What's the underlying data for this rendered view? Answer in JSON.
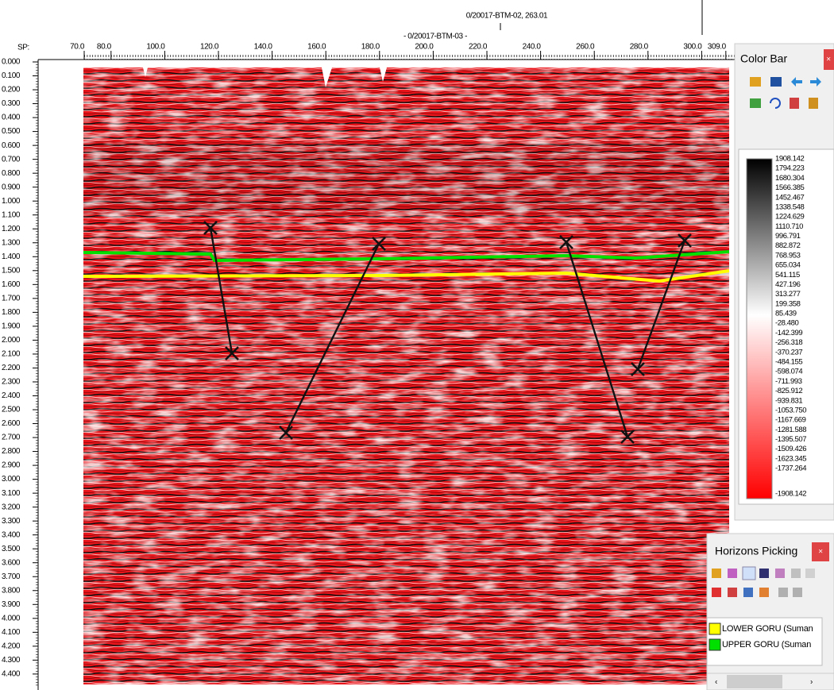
{
  "header": {
    "well_label_1": "0/20017-BTM-02, 263.01",
    "well_label_2": "- 0/20017-BTM-03 -",
    "sp_label": "SP:"
  },
  "sp_axis": {
    "ticks": [
      {
        "value": 70,
        "label": "70.0"
      },
      {
        "value": 80,
        "label": "80.0"
      },
      {
        "value": 100,
        "label": "100.0"
      },
      {
        "value": 120,
        "label": "120.0"
      },
      {
        "value": 140,
        "label": "140.0"
      },
      {
        "value": 160,
        "label": "160.0"
      },
      {
        "value": 180,
        "label": "180.0"
      },
      {
        "value": 200,
        "label": "200.0"
      },
      {
        "value": 220,
        "label": "220.0"
      },
      {
        "value": 240,
        "label": "240.0"
      },
      {
        "value": 260,
        "label": "260.0"
      },
      {
        "value": 280,
        "label": "280.0"
      },
      {
        "value": 300,
        "label": "300.0"
      },
      {
        "value": 309,
        "label": "309.0"
      }
    ]
  },
  "time_axis": {
    "ticks": [
      {
        "value": 0,
        "label": "0.000"
      },
      {
        "value": 0.1,
        "label": "0.100"
      },
      {
        "value": 0.2,
        "label": "0.200"
      },
      {
        "value": 0.3,
        "label": "0.300"
      },
      {
        "value": 0.4,
        "label": "0.400"
      },
      {
        "value": 0.5,
        "label": "0.500"
      },
      {
        "value": 0.6,
        "label": "0.600"
      },
      {
        "value": 0.7,
        "label": "0.700"
      },
      {
        "value": 0.8,
        "label": "0.800"
      },
      {
        "value": 0.9,
        "label": "0.900"
      },
      {
        "value": 1.0,
        "label": "1.000"
      },
      {
        "value": 1.1,
        "label": "1.100"
      },
      {
        "value": 1.2,
        "label": "1.200"
      },
      {
        "value": 1.3,
        "label": "1.300"
      },
      {
        "value": 1.4,
        "label": "1.400"
      },
      {
        "value": 1.5,
        "label": "1.500"
      },
      {
        "value": 1.6,
        "label": "1.600"
      },
      {
        "value": 1.7,
        "label": "1.700"
      },
      {
        "value": 1.8,
        "label": "1.800"
      },
      {
        "value": 1.9,
        "label": "1.900"
      },
      {
        "value": 2.0,
        "label": "2.000"
      },
      {
        "value": 2.1,
        "label": "2.100"
      },
      {
        "value": 2.2,
        "label": "2.200"
      },
      {
        "value": 2.3,
        "label": "2.300"
      },
      {
        "value": 2.4,
        "label": "2.400"
      },
      {
        "value": 2.5,
        "label": "2.500"
      },
      {
        "value": 2.6,
        "label": "2.600"
      },
      {
        "value": 2.7,
        "label": "2.700"
      },
      {
        "value": 2.8,
        "label": "2.800"
      },
      {
        "value": 2.9,
        "label": "2.900"
      },
      {
        "value": 3.0,
        "label": "3.000"
      },
      {
        "value": 3.1,
        "label": "3.100"
      },
      {
        "value": 3.2,
        "label": "3.200"
      },
      {
        "value": 3.3,
        "label": "3.300"
      },
      {
        "value": 3.4,
        "label": "3.400"
      },
      {
        "value": 3.5,
        "label": "3.500"
      },
      {
        "value": 3.6,
        "label": "3.600"
      },
      {
        "value": 3.7,
        "label": "3.700"
      },
      {
        "value": 3.8,
        "label": "3.800"
      },
      {
        "value": 3.9,
        "label": "3.900"
      },
      {
        "value": 4.0,
        "label": "4.000"
      },
      {
        "value": 4.1,
        "label": "4.100"
      },
      {
        "value": 4.2,
        "label": "4.200"
      },
      {
        "value": 4.3,
        "label": "4.300"
      },
      {
        "value": 4.4,
        "label": "4.400"
      }
    ]
  },
  "color_bar": {
    "title": "Color Bar",
    "labels": [
      "1908.142",
      "1794.223",
      "1680.304",
      "1566.385",
      "1452.467",
      "1338.548",
      "1224.629",
      "1110.710",
      "996.791",
      "882.872",
      "768.953",
      "655.034",
      "541.115",
      "427.196",
      "313.277",
      "199.358",
      "85.439",
      "-28.480",
      "-142.399",
      "-256.318",
      "-370.237",
      "-484.155",
      "-598.074",
      "-711.993",
      "-825.912",
      "-939.831",
      "-1053.750",
      "-1167.669",
      "-1281.588",
      "-1395.507",
      "-1509.426",
      "-1623.345",
      "-1737.264",
      "-1908.142"
    ]
  },
  "horizons_picking": {
    "title": "Horizons Picking",
    "horizons": [
      {
        "name": "LOWER GORU (Suman",
        "color": "#ffff00"
      },
      {
        "name": "UPPER GORU (Suman",
        "color": "#00e000"
      }
    ]
  }
}
